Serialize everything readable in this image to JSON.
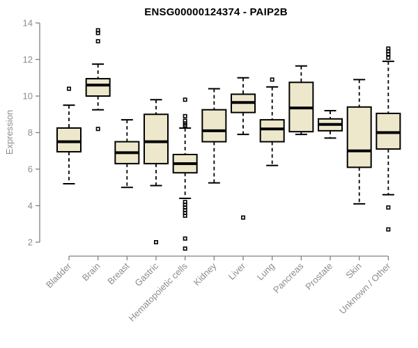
{
  "colors": {
    "background": "#ffffff",
    "title_text": "#000000",
    "axis_line": "#808080",
    "tick_label": "#8c8c8c",
    "box_fill": "#ede8cb",
    "box_stroke": "#000000",
    "median_line": "#000000",
    "outlier_stroke": "#000000"
  },
  "chart_data": {
    "type": "boxplot",
    "title": "ENSG00000124374 - PAIP2B",
    "xlabel": "",
    "ylabel": "Expression",
    "ylim": [
      2,
      14
    ],
    "yticks": [
      2,
      4,
      6,
      8,
      10,
      12,
      14
    ],
    "grid": false,
    "legend": "none",
    "x_tick_rotation_deg": 45,
    "categories": [
      "Bladder",
      "Brain",
      "Breast",
      "Gastric",
      "Hematopoietic cells",
      "Kidney",
      "Liver",
      "Lung",
      "Pancreas",
      "Prostate",
      "Skin",
      "Unknown / Other"
    ],
    "boxes": [
      {
        "category": "Bladder",
        "whisker_low": 5.2,
        "q1": 6.95,
        "median": 7.5,
        "q3": 8.25,
        "whisker_high": 9.5,
        "outliers": [
          10.4
        ]
      },
      {
        "category": "Brain",
        "whisker_low": 9.25,
        "q1": 10.0,
        "median": 10.6,
        "q3": 10.95,
        "whisker_high": 11.75,
        "outliers": [
          13.6,
          13.45,
          13.0,
          8.2
        ]
      },
      {
        "category": "Breast",
        "whisker_low": 5.0,
        "q1": 6.3,
        "median": 6.9,
        "q3": 7.5,
        "whisker_high": 8.7,
        "outliers": []
      },
      {
        "category": "Gastric",
        "whisker_low": 5.1,
        "q1": 6.3,
        "median": 7.5,
        "q3": 9.0,
        "whisker_high": 9.8,
        "outliers": [
          2.0
        ]
      },
      {
        "category": "Hematopoietic cells",
        "whisker_low": 4.4,
        "q1": 5.8,
        "median": 6.3,
        "q3": 6.8,
        "whisker_high": 8.25,
        "outliers": [
          9.8,
          8.9,
          8.65,
          8.5,
          8.4,
          4.2,
          4.05,
          3.9,
          3.75,
          3.6,
          3.45,
          2.2,
          1.65
        ]
      },
      {
        "category": "Kidney",
        "whisker_low": 5.25,
        "q1": 7.5,
        "median": 8.1,
        "q3": 9.25,
        "whisker_high": 10.4,
        "outliers": []
      },
      {
        "category": "Liver",
        "whisker_low": 7.9,
        "q1": 9.1,
        "median": 9.65,
        "q3": 10.1,
        "whisker_high": 11.0,
        "outliers": [
          3.35
        ]
      },
      {
        "category": "Lung",
        "whisker_low": 6.2,
        "q1": 7.5,
        "median": 8.2,
        "q3": 8.7,
        "whisker_high": 10.5,
        "outliers": [
          10.9
        ]
      },
      {
        "category": "Pancreas",
        "whisker_low": 7.9,
        "q1": 8.05,
        "median": 9.35,
        "q3": 10.75,
        "whisker_high": 11.65,
        "outliers": []
      },
      {
        "category": "Prostate",
        "whisker_low": 7.7,
        "q1": 8.1,
        "median": 8.45,
        "q3": 8.75,
        "whisker_high": 9.2,
        "outliers": []
      },
      {
        "category": "Skin",
        "whisker_low": 4.1,
        "q1": 6.1,
        "median": 7.0,
        "q3": 9.4,
        "whisker_high": 10.9,
        "outliers": []
      },
      {
        "category": "Unknown / Other",
        "whisker_low": 4.6,
        "q1": 7.1,
        "median": 8.0,
        "q3": 9.05,
        "whisker_high": 11.9,
        "outliers": [
          12.6,
          12.45,
          12.3,
          12.1,
          3.9,
          2.7
        ]
      }
    ]
  }
}
